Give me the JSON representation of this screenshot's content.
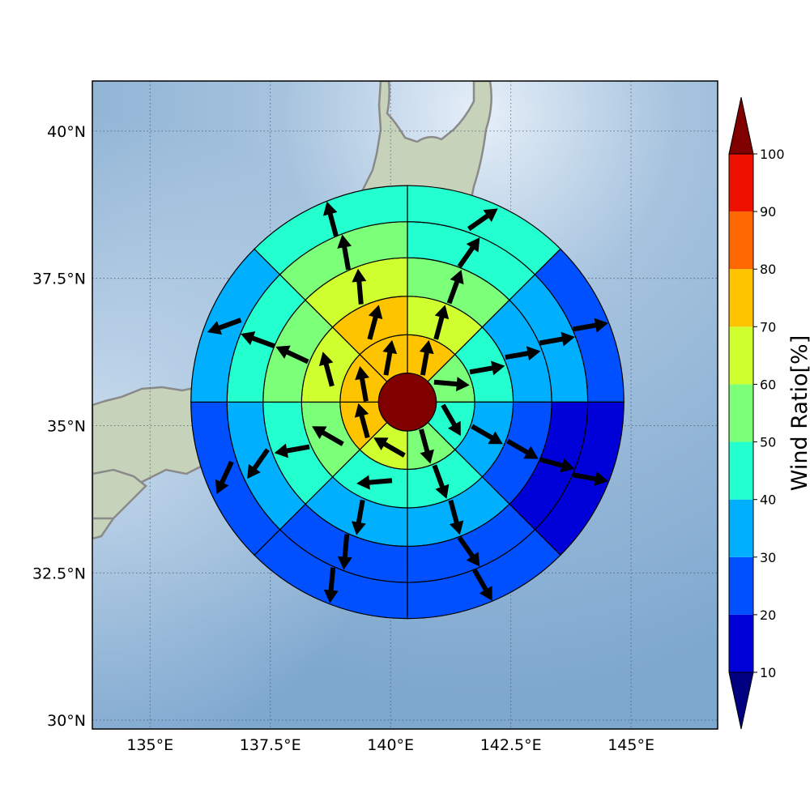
{
  "chart_data": {
    "type": "polar-sector-map",
    "map": {
      "x_ticks": [
        {
          "value": 135.0,
          "label": "135°E"
        },
        {
          "value": 137.5,
          "label": "137.5°E"
        },
        {
          "value": 140.0,
          "label": "140°E"
        },
        {
          "value": 142.5,
          "label": "142.5°E"
        },
        {
          "value": 145.0,
          "label": "145°E"
        }
      ],
      "y_ticks": [
        {
          "value": 30.0,
          "label": "30°N"
        },
        {
          "value": 32.5,
          "label": "32.5°N"
        },
        {
          "value": 35.0,
          "label": "35°N"
        },
        {
          "value": 37.5,
          "label": "37.5°N"
        },
        {
          "value": 40.0,
          "label": "40°N"
        }
      ],
      "xlim": [
        133.8,
        146.8
      ],
      "ylim": [
        29.85,
        40.85
      ],
      "grid": "dotted",
      "colors": {
        "sea": "#86acd0",
        "land": "#c7d2ba",
        "coast": "#8a8a8a"
      }
    },
    "center": {
      "lon": 140.35,
      "lat": 35.4,
      "value": 100
    },
    "ring_radius_deg": [
      0.6,
      1.4,
      2.2,
      3.0,
      3.75,
      4.5
    ],
    "sector_count": 8,
    "sector_order": "clockwise from north",
    "rings": [
      {
        "ring": 1,
        "values": [
          70,
          55,
          45,
          55,
          65,
          70,
          70,
          70
        ],
        "wind_dir_deg": [
          10,
          95,
          150,
          165,
          300,
          345,
          350,
          10
        ]
      },
      {
        "ring": 2,
        "values": [
          65,
          45,
          35,
          45,
          45,
          55,
          65,
          70
        ],
        "wind_dir_deg": [
          15,
          80,
          120,
          160,
          265,
          300,
          345,
          15
        ]
      },
      {
        "ring": 3,
        "values": [
          55,
          35,
          25,
          35,
          35,
          45,
          55,
          65
        ],
        "wind_dir_deg": [
          20,
          80,
          120,
          165,
          190,
          260,
          295,
          355
        ]
      },
      {
        "ring": 4,
        "values": [
          45,
          35,
          15,
          25,
          25,
          35,
          40,
          55
        ],
        "wind_dir_deg": [
          35,
          80,
          105,
          145,
          185,
          215,
          290,
          350
        ]
      },
      {
        "ring": 5,
        "values": [
          45,
          25,
          15,
          25,
          25,
          25,
          35,
          45
        ],
        "wind_dir_deg": [
          55,
          80,
          100,
          150,
          185,
          205,
          250,
          345
        ]
      }
    ],
    "colorbar": {
      "title": "Wind Ratio[%]",
      "ticks": [
        "10",
        "20",
        "30",
        "40",
        "50",
        "60",
        "70",
        "80",
        "90",
        "100"
      ],
      "levels": [
        10,
        20,
        30,
        40,
        50,
        60,
        70,
        80,
        90,
        100
      ],
      "colors": [
        "#0000d8",
        "#0050ff",
        "#00b0ff",
        "#24ffd0",
        "#7cff79",
        "#d0ff30",
        "#ffc400",
        "#ff6800",
        "#ee1100"
      ],
      "under_color": "#000080",
      "over_color": "#800000"
    }
  }
}
